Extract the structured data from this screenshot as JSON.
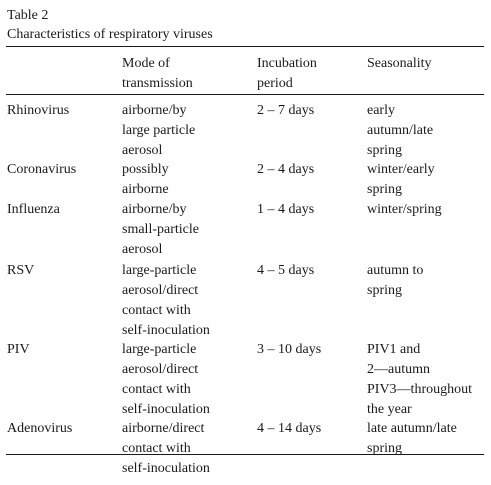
{
  "caption": {
    "label": "Table 2",
    "title": "Characteristics of respiratory viruses"
  },
  "table": {
    "headers": {
      "virus": "",
      "transmission": "Mode of\ntransmission",
      "incubation": "Incubation\nperiod",
      "seasonality": "Seasonality"
    },
    "rows": [
      {
        "virus": "Rhinovirus",
        "transmission": "airborne/by\nlarge particle\naerosol",
        "incubation": "2 – 7 days",
        "seasonality": "early\nautumn/late\nspring"
      },
      {
        "virus": "Coronavirus",
        "transmission": "possibly\nairborne",
        "incubation": "2 – 4 days",
        "seasonality": "winter/early\nspring"
      },
      {
        "virus": "Influenza",
        "transmission": "airborne/by\nsmall-particle\naerosol",
        "incubation": "1 – 4 days",
        "seasonality": "winter/spring"
      },
      {
        "virus": "RSV",
        "transmission": "large-particle\naerosol/direct\ncontact with\nself-inoculation",
        "incubation": "4 – 5 days",
        "seasonality": "autumn to\nspring"
      },
      {
        "virus": "PIV",
        "transmission": "large-particle\naerosol/direct\ncontact with\nself-inoculation",
        "incubation": "3 – 10 days",
        "seasonality": "PIV1 and\n2—autumn\nPIV3—throughout\nthe year"
      },
      {
        "virus": "Adenovirus",
        "transmission": "airborne/direct\ncontact with\nself-inoculation",
        "incubation": "4 – 14 days",
        "seasonality": "late autumn/late\nspring"
      }
    ]
  }
}
